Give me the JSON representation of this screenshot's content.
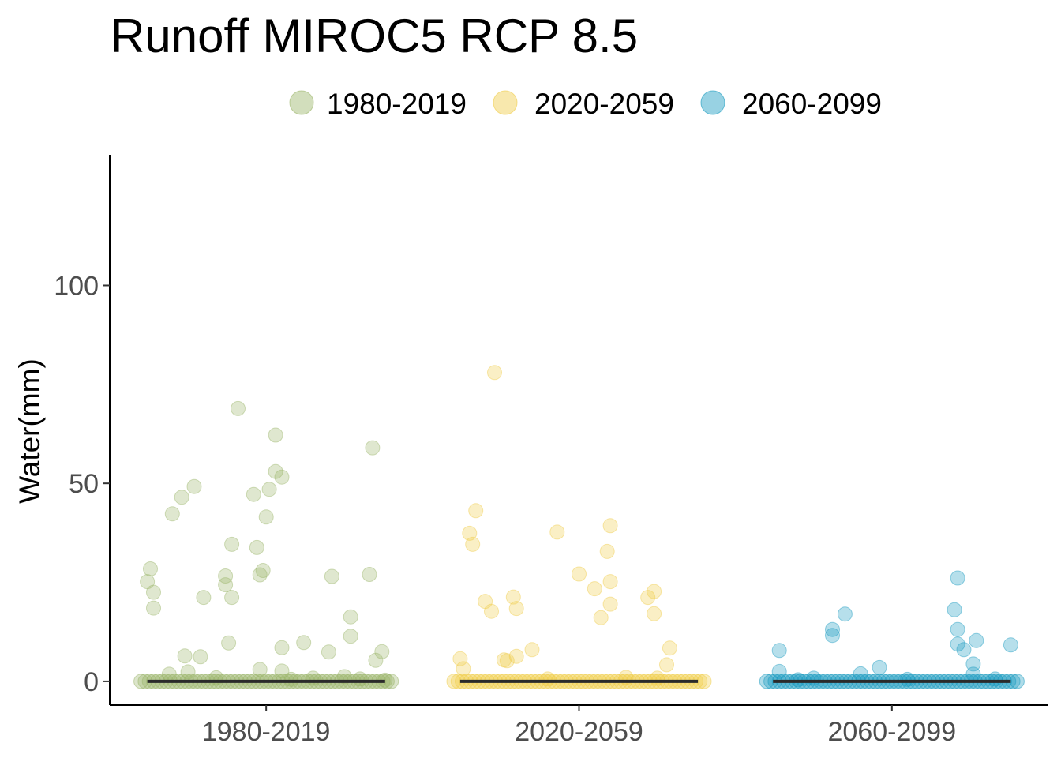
{
  "chart_data": {
    "type": "scatter",
    "title": "Runoff MIROC5 RCP 8.5",
    "xlabel": "",
    "ylabel": "Water(mm)",
    "ylim": [
      -6,
      133
    ],
    "yticks": [
      0,
      50,
      100
    ],
    "categories": [
      "1980-2019",
      "2020-2059",
      "2060-2099"
    ],
    "legend_position": "top",
    "grid": false,
    "median_line_color": "#2b2b2b",
    "series": [
      {
        "name": "1980-2019",
        "color": "#9cb56b",
        "median": 0,
        "points": [
          [
            -0.37,
            28.4
          ],
          [
            -0.38,
            25.2
          ],
          [
            -0.36,
            22.5
          ],
          [
            -0.36,
            18.5
          ],
          [
            -0.3,
            42.3
          ],
          [
            -0.27,
            46.5
          ],
          [
            -0.23,
            49.2
          ],
          [
            -0.26,
            6.4
          ],
          [
            -0.21,
            6.2
          ],
          [
            -0.2,
            21.2
          ],
          [
            -0.13,
            26.6
          ],
          [
            -0.13,
            24.4
          ],
          [
            -0.11,
            34.6
          ],
          [
            -0.11,
            21.2
          ],
          [
            -0.12,
            9.7
          ],
          [
            -0.09,
            68.9
          ],
          [
            -0.04,
            47.2
          ],
          [
            -0.03,
            33.8
          ],
          [
            -0.02,
            26.9
          ],
          [
            -0.01,
            28.0
          ],
          [
            0.0,
            41.5
          ],
          [
            0.01,
            48.5
          ],
          [
            0.03,
            62.2
          ],
          [
            0.03,
            53.0
          ],
          [
            0.05,
            51.6
          ],
          [
            0.05,
            8.5
          ],
          [
            0.05,
            2.6
          ],
          [
            -0.02,
            3.0
          ],
          [
            0.12,
            9.8
          ],
          [
            0.2,
            7.4
          ],
          [
            0.21,
            26.5
          ],
          [
            0.27,
            16.3
          ],
          [
            0.27,
            11.4
          ],
          [
            0.33,
            27.0
          ],
          [
            0.34,
            59.0
          ],
          [
            0.35,
            5.3
          ],
          [
            0.37,
            7.5
          ],
          [
            -0.31,
            1.8
          ],
          [
            -0.25,
            2.4
          ],
          [
            -0.16,
            0.9
          ],
          [
            0.08,
            0.5
          ],
          [
            0.15,
            0.8
          ],
          [
            0.25,
            1.2
          ],
          [
            0.3,
            0.6
          ],
          [
            0.38,
            0.3
          ]
        ]
      },
      {
        "name": "2020-2059",
        "color": "#f0cd4a",
        "median": 0,
        "points": [
          [
            -0.38,
            5.7
          ],
          [
            -0.37,
            3.2
          ],
          [
            -0.35,
            37.4
          ],
          [
            -0.34,
            34.6
          ],
          [
            -0.33,
            43.1
          ],
          [
            -0.3,
            20.2
          ],
          [
            -0.28,
            17.7
          ],
          [
            -0.27,
            78.0
          ],
          [
            -0.24,
            5.4
          ],
          [
            -0.23,
            5.2
          ],
          [
            -0.21,
            21.3
          ],
          [
            -0.2,
            18.4
          ],
          [
            -0.2,
            6.3
          ],
          [
            -0.15,
            8.0
          ],
          [
            -0.07,
            37.7
          ],
          [
            0.0,
            27.1
          ],
          [
            0.05,
            23.4
          ],
          [
            0.07,
            16.1
          ],
          [
            0.09,
            32.8
          ],
          [
            0.1,
            39.3
          ],
          [
            0.1,
            25.2
          ],
          [
            0.1,
            19.5
          ],
          [
            0.22,
            21.2
          ],
          [
            0.24,
            22.7
          ],
          [
            0.24,
            17.1
          ],
          [
            0.29,
            8.4
          ],
          [
            0.28,
            4.2
          ],
          [
            0.25,
            0.8
          ],
          [
            -0.1,
            0.6
          ],
          [
            0.15,
            1.0
          ]
        ]
      },
      {
        "name": "2060-2099",
        "color": "#1b9cc0",
        "median": 0,
        "points": [
          [
            -0.36,
            7.8
          ],
          [
            -0.36,
            2.5
          ],
          [
            -0.19,
            13.1
          ],
          [
            -0.19,
            11.6
          ],
          [
            -0.15,
            17.0
          ],
          [
            -0.1,
            1.9
          ],
          [
            -0.04,
            3.5
          ],
          [
            0.2,
            18.1
          ],
          [
            0.21,
            13.1
          ],
          [
            0.21,
            9.4
          ],
          [
            0.21,
            26.1
          ],
          [
            0.23,
            8.0
          ],
          [
            0.26,
            4.4
          ],
          [
            0.26,
            1.8
          ],
          [
            0.27,
            10.3
          ],
          [
            0.38,
            9.2
          ],
          [
            -0.25,
            0.8
          ],
          [
            0.05,
            0.5
          ],
          [
            0.33,
            0.6
          ],
          [
            -0.3,
            0.4
          ]
        ]
      }
    ]
  }
}
